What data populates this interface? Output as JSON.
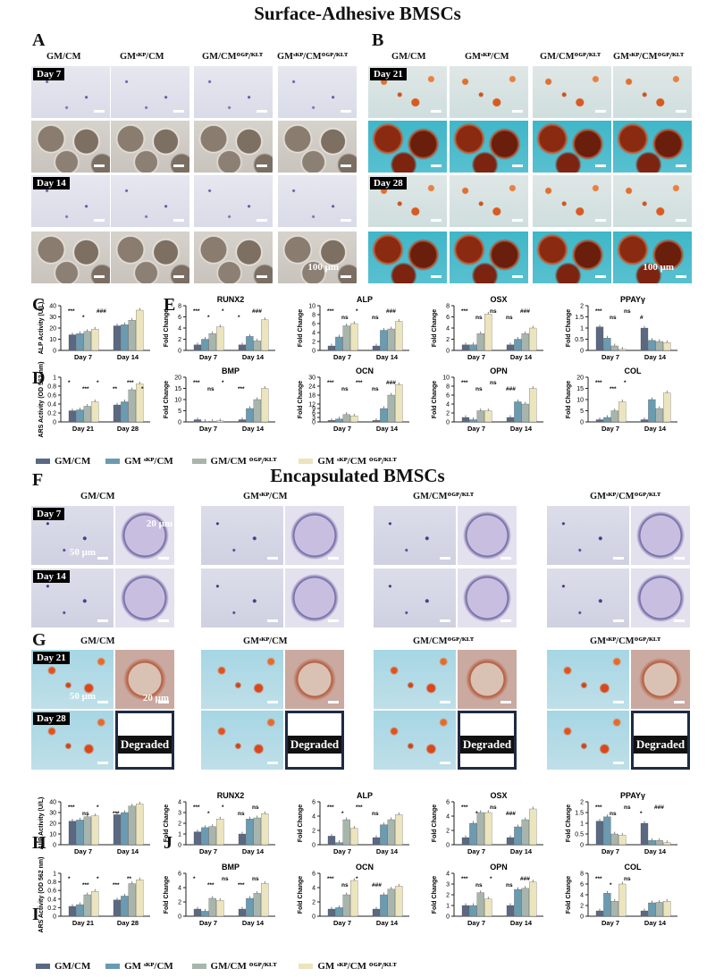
{
  "title1": "Surface-Adhesive BMSCs",
  "title2": "Encapsulated BMSCs",
  "panels": {
    "A": "A",
    "B": "B",
    "C": "C",
    "D": "D",
    "E": "E",
    "F": "F",
    "G": "G",
    "H": "H",
    "I": "I",
    "J": "J"
  },
  "groups": [
    "GM/CM",
    "GMˢᴷᴾ/CM",
    "GM/CMᴼᴳᴾ/ᴷᴸᵀ",
    "GMˢᴷᴾ/CMᴼᴳᴾ/ᴷᴸᵀ"
  ],
  "days": {
    "d7": "Day 7",
    "d14": "Day 14",
    "d21": "Day 21",
    "d28": "Day 28"
  },
  "scale": {
    "s100": "100 μm",
    "s50": "50 μm",
    "s20": "20 μm"
  },
  "degraded": "Degraded",
  "legend": [
    "GM/CM",
    "GM ˢᴷᴾ/CM",
    "GM/CM ᴼᴳᴾ/ᴷᴸᵀ",
    "GM ˢᴷᴾ/CM ᴼᴳᴾ/ᴷᴸᵀ"
  ],
  "colors": [
    "#5a6882",
    "#6a9bb0",
    "#a7b5ad",
    "#ece4bd"
  ],
  "chart_data": [
    {
      "id": "C",
      "type": "bar",
      "ylabel": "ALP Activity (U/L)",
      "categories": [
        "Day 7",
        "Day 14"
      ],
      "ylim": [
        0,
        40
      ],
      "ticks": [
        0,
        10,
        20,
        30,
        40
      ],
      "series": [
        [
          14,
          22
        ],
        [
          15,
          23
        ],
        [
          17,
          27
        ],
        [
          19,
          36
        ]
      ],
      "annots": [
        "***",
        "*",
        "###"
      ]
    },
    {
      "id": "D",
      "type": "bar",
      "ylabel": "ARS Activity (OD 562 nm)",
      "categories": [
        "Day 21",
        "Day 28"
      ],
      "ylim": [
        0,
        1.0
      ],
      "ticks": [
        0,
        0.2,
        0.4,
        0.6,
        0.8,
        1.0
      ],
      "series": [
        [
          0.25,
          0.38
        ],
        [
          0.27,
          0.45
        ],
        [
          0.35,
          0.72
        ],
        [
          0.45,
          0.85
        ]
      ],
      "annots": [
        "*",
        "***",
        "*",
        "**",
        "***",
        "*"
      ]
    },
    {
      "id": "E-RUNX2",
      "type": "bar",
      "title": "RUNX2",
      "ylabel": "Fold Change",
      "categories": [
        "Day 7",
        "Day 14"
      ],
      "ylim": [
        0,
        8
      ],
      "ticks": [
        0,
        2,
        4,
        6,
        8
      ],
      "series": [
        [
          1,
          1
        ],
        [
          2,
          2.5
        ],
        [
          3,
          1.7
        ],
        [
          4.2,
          5.5
        ]
      ],
      "annots": [
        "***",
        "*",
        "*",
        "*",
        "###"
      ]
    },
    {
      "id": "E-ALP",
      "type": "bar",
      "title": "ALP",
      "ylabel": "Fold Change",
      "categories": [
        "Day 7",
        "Day 14"
      ],
      "ylim": [
        0,
        10
      ],
      "ticks": [
        0,
        2,
        4,
        6,
        8,
        10
      ],
      "series": [
        [
          1,
          1
        ],
        [
          3,
          4.5
        ],
        [
          5.5,
          4.8
        ],
        [
          6,
          6.5
        ]
      ],
      "annots": [
        "***",
        "ns",
        "*",
        "ns",
        "###"
      ]
    },
    {
      "id": "E-OSX",
      "type": "bar",
      "title": "OSX",
      "ylabel": "Fold Change",
      "categories": [
        "Day 7",
        "Day 14"
      ],
      "ylim": [
        0,
        8
      ],
      "ticks": [
        0,
        2,
        4,
        6,
        8
      ],
      "series": [
        [
          1,
          1
        ],
        [
          1,
          2
        ],
        [
          3,
          3
        ],
        [
          6.5,
          4
        ]
      ],
      "annots": [
        "***",
        "ns",
        "ns",
        "ns",
        "###"
      ]
    },
    {
      "id": "E-PPAY",
      "type": "bar",
      "title": "PPAYγ",
      "ylabel": "Fold Change",
      "categories": [
        "Day 7",
        "Day 14"
      ],
      "ylim": [
        0,
        2.0
      ],
      "ticks": [
        0,
        0.5,
        1.0,
        1.5,
        2.0
      ],
      "series": [
        [
          1.05,
          1.0
        ],
        [
          0.55,
          0.45
        ],
        [
          0.2,
          0.4
        ],
        [
          0.05,
          0.35
        ]
      ],
      "annots": [
        "***",
        "ns",
        "ns",
        "#"
      ]
    },
    {
      "id": "E-BMP",
      "type": "bar",
      "title": "BMP",
      "ylabel": "Fold Change",
      "categories": [
        "Day 7",
        "Day 14"
      ],
      "ylim": [
        0,
        20
      ],
      "ticks": [
        0,
        5,
        10,
        15,
        20
      ],
      "series": [
        [
          1,
          1
        ],
        [
          0.2,
          6
        ],
        [
          0.3,
          10
        ],
        [
          0.5,
          15
        ]
      ],
      "annots": [
        "***",
        "ns",
        "*",
        "***"
      ]
    },
    {
      "id": "E-OCN",
      "type": "bar",
      "title": "OCN",
      "ylabel": "Fold Change",
      "categories": [
        "Day 7",
        "Day 14"
      ],
      "ylim": [
        0,
        30
      ],
      "ticks": [
        0,
        3,
        6,
        9,
        12,
        18,
        24,
        30
      ],
      "series": [
        [
          1,
          1
        ],
        [
          2,
          9
        ],
        [
          5,
          18
        ],
        [
          4,
          25
        ]
      ],
      "annots": [
        "***",
        "ns",
        "***",
        "ns",
        "###"
      ]
    },
    {
      "id": "E-OPN",
      "type": "bar",
      "title": "OPN",
      "ylabel": "Fold Change",
      "categories": [
        "Day 7",
        "Day 14"
      ],
      "ylim": [
        0,
        10
      ],
      "ticks": [
        0,
        2,
        4,
        6,
        8,
        10
      ],
      "series": [
        [
          1,
          1
        ],
        [
          0.5,
          4.5
        ],
        [
          2.5,
          4
        ],
        [
          2.5,
          7.5
        ]
      ],
      "annots": [
        "***",
        "ns",
        "ns",
        "###"
      ]
    },
    {
      "id": "E-COL",
      "type": "bar",
      "title": "COL",
      "ylabel": "Fold Change",
      "categories": [
        "Day 7",
        "Day 14"
      ],
      "ylim": [
        0,
        20
      ],
      "ticks": [
        0,
        5,
        10,
        15,
        20
      ],
      "series": [
        [
          1,
          1
        ],
        [
          2,
          10
        ],
        [
          5,
          6
        ],
        [
          9,
          13
        ]
      ],
      "annots": [
        "***",
        "***",
        "*"
      ]
    },
    {
      "id": "H",
      "type": "bar",
      "ylabel": "ALP Activity (U/L)",
      "categories": [
        "Day 7",
        "Day 14"
      ],
      "ylim": [
        0,
        40
      ],
      "ticks": [
        0,
        10,
        20,
        30,
        40
      ],
      "series": [
        [
          22,
          28
        ],
        [
          23,
          30
        ],
        [
          26,
          36
        ],
        [
          27,
          38
        ]
      ],
      "annots": [
        "***",
        "ns",
        "*",
        "***"
      ]
    },
    {
      "id": "I",
      "type": "bar",
      "ylabel": "ARS Activity (OD 562 nm)",
      "categories": [
        "Day 21",
        "Day 28"
      ],
      "ylim": [
        0,
        1.0
      ],
      "ticks": [
        0,
        0.2,
        0.4,
        0.6,
        0.8,
        1.0
      ],
      "series": [
        [
          0.23,
          0.38
        ],
        [
          0.27,
          0.47
        ],
        [
          0.5,
          0.76
        ],
        [
          0.58,
          0.85
        ]
      ],
      "annots": [
        "*",
        "***",
        "*",
        "***",
        "**"
      ]
    },
    {
      "id": "J-RUNX2",
      "type": "bar",
      "title": "RUNX2",
      "ylabel": "Fold Change",
      "categories": [
        "Day 7",
        "Day 14"
      ],
      "ylim": [
        0,
        4
      ],
      "ticks": [
        0,
        1,
        2,
        3,
        4
      ],
      "series": [
        [
          1.2,
          1
        ],
        [
          1.6,
          2.4
        ],
        [
          1.7,
          2.5
        ],
        [
          2.4,
          2.9
        ]
      ],
      "annots": [
        "***",
        "*",
        "*",
        "ns",
        "ns"
      ]
    },
    {
      "id": "J-ALP",
      "type": "bar",
      "title": "ALP",
      "ylabel": "Fold Change",
      "categories": [
        "Day 7",
        "Day 14"
      ],
      "ylim": [
        0,
        6
      ],
      "ticks": [
        0,
        2,
        4,
        6
      ],
      "series": [
        [
          1.2,
          1
        ],
        [
          0.3,
          2.8
        ],
        [
          3.5,
          3.5
        ],
        [
          2.3,
          4.2
        ]
      ],
      "annots": [
        "***",
        "*",
        "***",
        "ns"
      ]
    },
    {
      "id": "J-OSX",
      "type": "bar",
      "title": "OSX",
      "ylabel": "Fold Change",
      "categories": [
        "Day 7",
        "Day 14"
      ],
      "ylim": [
        0,
        6
      ],
      "ticks": [
        0,
        2,
        4,
        6
      ],
      "series": [
        [
          1,
          1
        ],
        [
          3,
          2.5
        ],
        [
          4.5,
          3.5
        ],
        [
          4.5,
          5
        ]
      ],
      "annots": [
        "***",
        "*",
        "ns",
        "###"
      ]
    },
    {
      "id": "J-PPAY",
      "type": "bar",
      "title": "PPAYγ",
      "ylabel": "Fold Change",
      "categories": [
        "Day 7",
        "Day 14"
      ],
      "ylim": [
        0,
        2.0
      ],
      "ticks": [
        0,
        0.5,
        1.0,
        1.5,
        2.0
      ],
      "series": [
        [
          1.1,
          1.0
        ],
        [
          1.3,
          0.2
        ],
        [
          0.5,
          0.2
        ],
        [
          0.45,
          0.1
        ]
      ],
      "annots": [
        "***",
        "ns",
        "ns",
        "*",
        "###"
      ]
    },
    {
      "id": "J-BMP",
      "type": "bar",
      "title": "BMP",
      "ylabel": "Fold Change",
      "categories": [
        "Day 7",
        "Day 14"
      ],
      "ylim": [
        0,
        6
      ],
      "ticks": [
        0,
        2,
        4,
        6
      ],
      "series": [
        [
          1,
          1
        ],
        [
          0.7,
          2.5
        ],
        [
          2.5,
          3.2
        ],
        [
          2.2,
          4.6
        ]
      ],
      "annots": [
        "*",
        "***",
        "ns",
        "***",
        "ns"
      ]
    },
    {
      "id": "J-OCN",
      "type": "bar",
      "title": "OCN",
      "ylabel": "Fold Change",
      "categories": [
        "Day 7",
        "Day 14"
      ],
      "ylim": [
        0,
        6
      ],
      "ticks": [
        0,
        2,
        4,
        6
      ],
      "series": [
        [
          1,
          1
        ],
        [
          1.2,
          3
        ],
        [
          3,
          3.8
        ],
        [
          5,
          4.2
        ]
      ],
      "annots": [
        "***",
        "ns",
        "*",
        "###"
      ]
    },
    {
      "id": "J-OPN",
      "type": "bar",
      "title": "OPN",
      "ylabel": "Fold Change",
      "categories": [
        "Day 7",
        "Day 14"
      ],
      "ylim": [
        0,
        4
      ],
      "ticks": [
        0,
        1,
        2,
        3,
        4
      ],
      "series": [
        [
          1,
          1
        ],
        [
          1,
          2.5
        ],
        [
          2.2,
          2.6
        ],
        [
          1.6,
          3.2
        ]
      ],
      "annots": [
        "***",
        "ns",
        "*",
        "ns",
        "###"
      ]
    },
    {
      "id": "J-COL",
      "type": "bar",
      "title": "COL",
      "ylabel": "Fold Change",
      "categories": [
        "Day 7",
        "Day 14"
      ],
      "ylim": [
        0,
        8
      ],
      "ticks": [
        0,
        2,
        4,
        6,
        8
      ],
      "series": [
        [
          1,
          1
        ],
        [
          4.3,
          2.5
        ],
        [
          2.8,
          2.6
        ],
        [
          6,
          2.8
        ]
      ],
      "annots": [
        "***",
        "*",
        "ns"
      ]
    }
  ]
}
